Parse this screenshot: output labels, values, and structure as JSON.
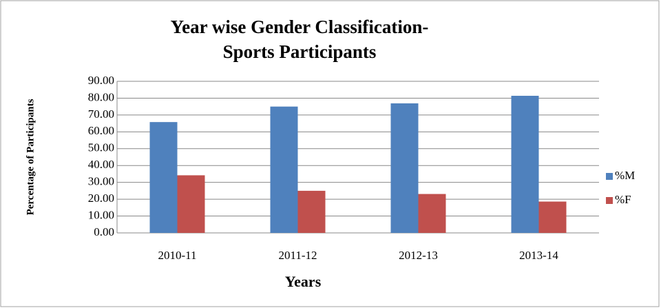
{
  "chart_data": {
    "type": "bar",
    "title": [
      "Year wise Gender Classification-",
      "Sports Participants"
    ],
    "x_label": "Years",
    "y_label": "Percentage of Participants",
    "categories": [
      "2010-11",
      "2011-12",
      "2012-13",
      "2013-14"
    ],
    "series": [
      {
        "name": "%M",
        "color": "#4f81bd",
        "values": [
          65.8,
          75,
          76.9,
          81.4
        ]
      },
      {
        "name": "%F",
        "color": "#c0504d",
        "values": [
          34.2,
          25,
          23.1,
          18.6
        ]
      }
    ],
    "ylim": [
      0,
      90
    ],
    "yticks": [
      {
        "value": 0,
        "label": "0.00"
      },
      {
        "value": 10,
        "label": "10.00"
      },
      {
        "value": 20,
        "label": "20.00"
      },
      {
        "value": 30,
        "label": "30.00"
      },
      {
        "value": 40,
        "label": "40.00"
      },
      {
        "value": 50,
        "label": "50.00"
      },
      {
        "value": 60,
        "label": "60.00"
      },
      {
        "value": 70,
        "label": "70.00"
      },
      {
        "value": 80,
        "label": "80.00"
      },
      {
        "value": 90,
        "label": "90.00"
      }
    ],
    "grid": true,
    "legend": "right"
  }
}
